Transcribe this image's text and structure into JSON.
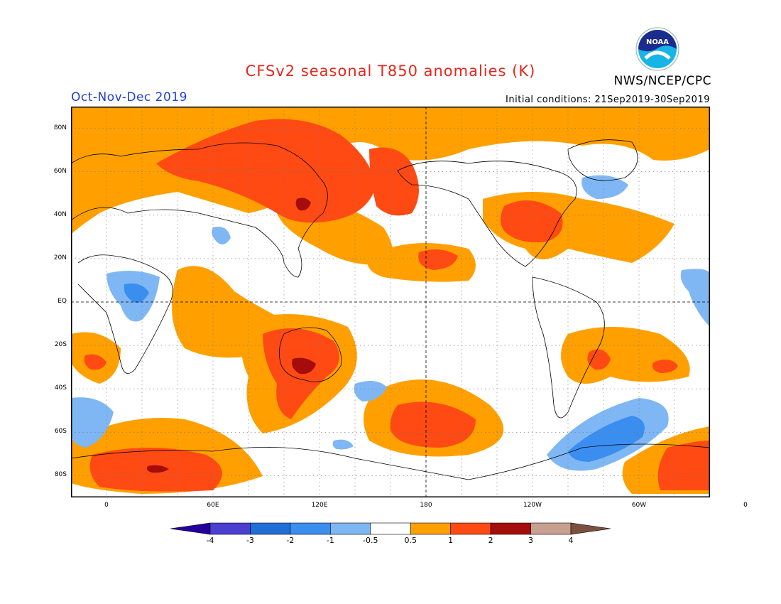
{
  "header": {
    "title": "CFSv2 seasonal T850 anomalies (K)",
    "agency": "NWS/NCEP/CPC",
    "period": "Oct-Nov-Dec 2019",
    "initial_conditions": "Initial conditions: 21Sep2019-30Sep2019",
    "logo_text": "NOAA"
  },
  "map": {
    "projection": "cylindrical equidistant",
    "lon_range": [
      -20,
      340
    ],
    "lat_range": [
      -90,
      90
    ],
    "lat_ticks": [
      {
        "lat": 80,
        "label": "80N"
      },
      {
        "lat": 60,
        "label": "60N"
      },
      {
        "lat": 40,
        "label": "40N"
      },
      {
        "lat": 20,
        "label": "20N"
      },
      {
        "lat": 0,
        "label": "EQ"
      },
      {
        "lat": -20,
        "label": "20S"
      },
      {
        "lat": -40,
        "label": "40S"
      },
      {
        "lat": -60,
        "label": "60S"
      },
      {
        "lat": -80,
        "label": "80S"
      }
    ],
    "lon_ticks": [
      {
        "lon": 0,
        "label": "0"
      },
      {
        "lon": 60,
        "label": "60E"
      },
      {
        "lon": 120,
        "label": "120E"
      },
      {
        "lon": 180,
        "label": "180"
      },
      {
        "lon": 240,
        "label": "120W"
      },
      {
        "lon": 300,
        "label": "60W"
      },
      {
        "lon": 360,
        "label": "0"
      }
    ],
    "grid": "dotted",
    "reference_lines": "dashed equator and 180 meridian"
  },
  "colorbar": {
    "levels": [
      "-4",
      "-3",
      "-2",
      "-1",
      "-0.5",
      "0.5",
      "1",
      "2",
      "3",
      "4"
    ],
    "colors": [
      "#24009a",
      "#4a3fd1",
      "#1f6fd6",
      "#3a8ef0",
      "#7fb7f5",
      "#ffffff",
      "#ffa000",
      "#ff4a14",
      "#a50d0d",
      "#c8a090",
      "#7a5040"
    ]
  }
}
